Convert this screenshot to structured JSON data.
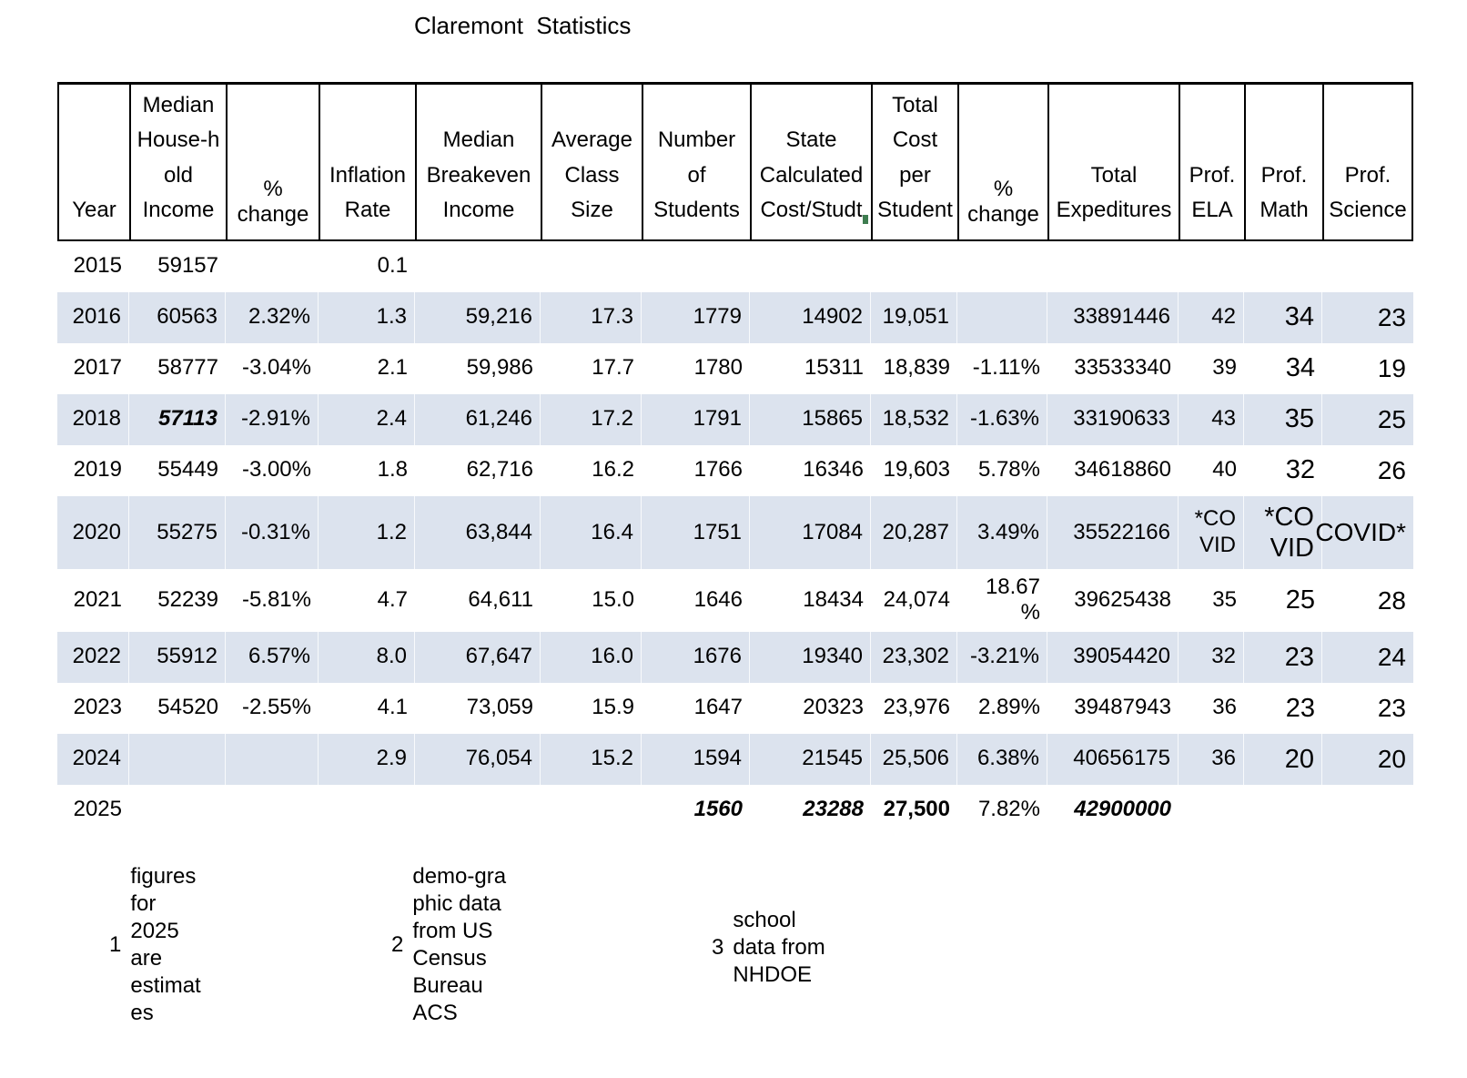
{
  "title": "Claremont  Statistics",
  "table": {
    "stripe_color": "#dce3ee",
    "comment_marker_color": "#3e7d50",
    "headers": [
      {
        "label": "Year"
      },
      {
        "label": "Median\nHouse-h\nold\nIncome"
      },
      {
        "label": "%\nchange",
        "tight": true
      },
      {
        "label": "Inflation\nRate"
      },
      {
        "label": "Median\nBreakeven\nIncome"
      },
      {
        "label": "Average\nClass\nSize"
      },
      {
        "label": "Number\nof\nStudents"
      },
      {
        "label": "State\nCalculated\nCost/Studt",
        "marker": true
      },
      {
        "label": "Total\nCost\nper\nStudent"
      },
      {
        "label": "%\nchange",
        "tight": true
      },
      {
        "label": "Total\nExpeditures"
      },
      {
        "label": "Prof.\nELA"
      },
      {
        "label": "Prof.\nMath"
      },
      {
        "label": "Prof.\nScience"
      }
    ],
    "striped_rows": [
      1,
      3,
      5,
      7,
      9
    ],
    "rows": [
      {
        "cells": [
          "2015",
          "59157",
          "",
          "0.1",
          "",
          "",
          "",
          "",
          "",
          "",
          "",
          "",
          "",
          ""
        ]
      },
      {
        "cells": [
          "2016",
          "60563",
          "2.32%",
          "1.3",
          "59,216",
          "17.3",
          "1779",
          "14902",
          "19,051",
          "",
          "33891446",
          "42",
          "34",
          "23"
        ]
      },
      {
        "cells": [
          "2017",
          "58777",
          "-3.04%",
          "2.1",
          "59,986",
          "17.7",
          "1780",
          "15311",
          "18,839",
          "-1.11%",
          "33533340",
          "39",
          "34",
          "19"
        ]
      },
      {
        "cells": [
          "2018",
          {
            "v": "57113",
            "style": "bi"
          },
          "-2.91%",
          "2.4",
          "61,246",
          "17.2",
          "1791",
          "15865",
          "18,532",
          "-1.63%",
          "33190633",
          "43",
          "35",
          "25"
        ]
      },
      {
        "cells": [
          "2019",
          "55449",
          "-3.00%",
          "1.8",
          "62,716",
          "16.2",
          "1766",
          "16346",
          "19,603",
          "5.78%",
          "34618860",
          "40",
          "32",
          "26"
        ]
      },
      {
        "cells": [
          "2020",
          "55275",
          "-0.31%",
          "1.2",
          "63,844",
          "16.4",
          "1751",
          "17084",
          "20,287",
          "3.49%",
          "35522166",
          "*CO VID",
          "*CO VID",
          "*COVID"
        ]
      },
      {
        "cells": [
          "2021",
          "52239",
          "-5.81%",
          "4.7",
          "64,611",
          "15.0",
          "1646",
          "18434",
          "24,074",
          "18.67\n%",
          "39625438",
          "35",
          "25",
          "28"
        ]
      },
      {
        "cells": [
          "2022",
          "55912",
          "6.57%",
          "8.0",
          "67,647",
          "16.0",
          "1676",
          "19340",
          "23,302",
          "-3.21%",
          "39054420",
          "32",
          "23",
          "24"
        ]
      },
      {
        "cells": [
          "2023",
          "54520",
          "-2.55%",
          "4.1",
          "73,059",
          "15.9",
          "1647",
          "20323",
          "23,976",
          "2.89%",
          "39487943",
          "36",
          "23",
          "23"
        ]
      },
      {
        "cells": [
          "2024",
          "",
          "",
          "2.9",
          "76,054",
          "15.2",
          "1594",
          "21545",
          "25,506",
          "6.38%",
          "40656175",
          "36",
          "20",
          "20"
        ]
      },
      {
        "cells": [
          "2025",
          "",
          "",
          "",
          "",
          "",
          {
            "v": "1560",
            "style": "bi"
          },
          {
            "v": "23288",
            "style": "bi"
          },
          {
            "v": "27,500",
            "style": "b"
          },
          "7.82%",
          {
            "v": "42900000",
            "style": "bi"
          },
          "",
          "",
          ""
        ]
      }
    ]
  },
  "footnotes": [
    {
      "num": "1",
      "text": "figures\nfor\n2025\nare\nestimat\nes"
    },
    {
      "num": "2",
      "text": "demo-gra\nphic data\nfrom US\nCensus\nBureau\nACS"
    },
    {
      "num": "3",
      "text": "school\ndata from\nNHDOE"
    }
  ]
}
